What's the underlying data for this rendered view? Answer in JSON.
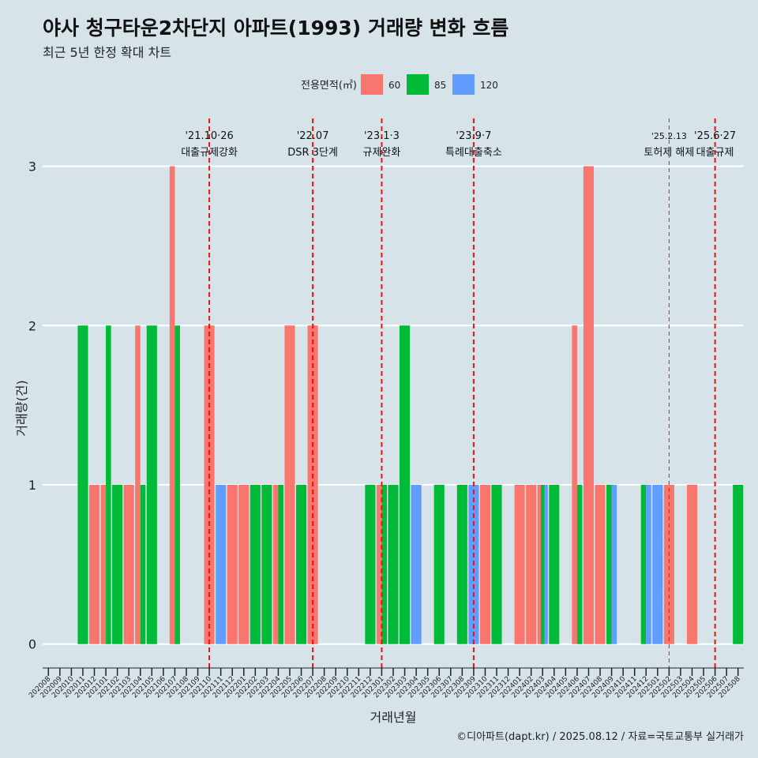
{
  "header": {
    "title": "야사 청구타운2차단지 아파트(1993) 거래량 변화 흐름",
    "subtitle": "최근 5년 한정 확대 차트"
  },
  "caption": "©디아파트(dapt.kr) / 2025.08.12 / 자료=국토교통부 실거래가",
  "chart_data": {
    "type": "bar",
    "xlabel": "거래년월",
    "ylabel": "거래량(건)",
    "ylim": [
      -0.15,
      3.3
    ],
    "yticks": [
      0,
      1,
      2,
      3
    ],
    "legend": {
      "title": "전용면적(㎡)",
      "position": "top",
      "entries": [
        {
          "label": "60",
          "color": "#F8766D"
        },
        {
          "label": "85",
          "color": "#00BA38"
        },
        {
          "label": "120",
          "color": "#619CFF"
        }
      ]
    },
    "categories": [
      "202008",
      "202009",
      "202010",
      "202011",
      "202012",
      "202101",
      "202102",
      "202103",
      "202104",
      "202105",
      "202106",
      "202107",
      "202108",
      "202109",
      "202110",
      "202111",
      "202112",
      "202201",
      "202202",
      "202203",
      "202204",
      "202205",
      "202206",
      "202207",
      "202208",
      "202209",
      "202210",
      "202211",
      "202212",
      "202301",
      "202302",
      "202303",
      "202304",
      "202305",
      "202306",
      "202307",
      "202308",
      "202309",
      "202310",
      "202311",
      "202312",
      "202401",
      "202402",
      "202403",
      "202404",
      "202405",
      "202406",
      "202407",
      "202408",
      "202409",
      "202410",
      "202411",
      "202412",
      "202501",
      "202502",
      "202503",
      "202504",
      "202505",
      "202506",
      "202507",
      "202508"
    ],
    "series": [
      {
        "name": "60",
        "color": "#F8766D",
        "values": [
          0,
          0,
          0,
          0,
          1,
          1,
          0,
          1,
          2,
          0,
          0,
          3,
          0,
          0,
          2,
          0,
          1,
          1,
          0,
          0,
          1,
          2,
          0,
          2,
          0,
          0,
          0,
          0,
          0,
          1,
          0,
          0,
          0,
          0,
          0,
          0,
          0,
          0,
          1,
          0,
          0,
          1,
          1,
          1,
          0,
          0,
          2,
          3,
          1,
          0,
          0,
          0,
          0,
          0,
          1,
          0,
          1,
          0,
          0,
          0,
          0
        ]
      },
      {
        "name": "85",
        "color": "#00BA38",
        "values": [
          0,
          0,
          0,
          2,
          0,
          2,
          1,
          0,
          1,
          2,
          0,
          2,
          0,
          0,
          0,
          0,
          0,
          0,
          1,
          1,
          1,
          0,
          1,
          0,
          0,
          0,
          0,
          0,
          1,
          1,
          1,
          2,
          0,
          0,
          1,
          0,
          1,
          0,
          0,
          1,
          0,
          0,
          0,
          1,
          1,
          0,
          1,
          0,
          0,
          1,
          0,
          0,
          1,
          0,
          0,
          0,
          0,
          0,
          0,
          0,
          1
        ]
      },
      {
        "name": "120",
        "color": "#619CFF",
        "values": [
          0,
          0,
          0,
          0,
          0,
          0,
          0,
          0,
          0,
          0,
          0,
          0,
          0,
          0,
          0,
          1,
          0,
          0,
          0,
          0,
          0,
          0,
          0,
          0,
          0,
          0,
          0,
          0,
          0,
          0,
          0,
          0,
          1,
          0,
          0,
          0,
          0,
          1,
          0,
          0,
          0,
          0,
          0,
          1,
          0,
          0,
          0,
          0,
          0,
          1,
          0,
          0,
          1,
          1,
          0,
          0,
          0,
          0,
          0,
          0,
          0
        ]
      }
    ],
    "events": [
      {
        "category": "202110",
        "date": "'21.10·26",
        "label": "대출규제강화",
        "style": "thick"
      },
      {
        "category": "202207",
        "date": "'22.07",
        "label": "DSR 3단계",
        "style": "thick"
      },
      {
        "category": "202301",
        "date": "'23.1·3",
        "label": "규제완화",
        "style": "thick"
      },
      {
        "category": "202309",
        "date": "'23.9·7",
        "label": "특례대출축소",
        "style": "thick"
      },
      {
        "category": "202502",
        "date": "'25.2.13",
        "label": "토허제 해제",
        "style": "thin"
      },
      {
        "category": "202506",
        "date": "'25.6·27",
        "label": "대출규제",
        "style": "thick"
      }
    ]
  }
}
